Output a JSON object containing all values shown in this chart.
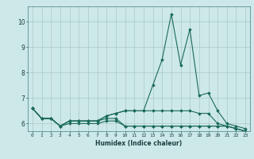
{
  "xlabel": "Humidex (Indice chaleur)",
  "x_values": [
    0,
    1,
    2,
    3,
    4,
    5,
    6,
    7,
    8,
    9,
    10,
    11,
    12,
    13,
    14,
    15,
    16,
    17,
    18,
    19,
    20,
    21,
    22,
    23
  ],
  "series": [
    [
      6.6,
      6.2,
      6.2,
      5.9,
      6.1,
      6.1,
      6.1,
      6.1,
      6.3,
      6.4,
      6.5,
      6.5,
      6.5,
      7.5,
      8.5,
      10.3,
      8.3,
      9.7,
      7.1,
      7.2,
      6.5,
      6.0,
      5.9,
      5.8
    ],
    [
      6.6,
      6.2,
      6.2,
      5.9,
      6.1,
      6.1,
      6.1,
      6.1,
      6.3,
      6.4,
      6.5,
      6.5,
      6.5,
      6.5,
      6.5,
      6.5,
      6.5,
      6.5,
      6.4,
      6.4,
      6.0,
      5.9,
      5.8,
      5.7
    ],
    [
      6.6,
      6.2,
      6.2,
      5.9,
      6.1,
      6.1,
      6.1,
      6.1,
      6.2,
      6.2,
      5.9,
      5.9,
      5.9,
      5.9,
      5.9,
      5.9,
      5.9,
      5.9,
      5.9,
      5.9,
      5.9,
      5.9,
      5.8,
      5.7
    ],
    [
      6.6,
      6.2,
      6.2,
      5.9,
      6.0,
      6.0,
      6.0,
      6.0,
      6.1,
      6.1,
      5.9,
      5.9,
      5.9,
      5.9,
      5.9,
      5.9,
      5.9,
      5.9,
      5.9,
      5.9,
      5.9,
      5.9,
      5.8,
      5.7
    ]
  ],
  "line_color": "#1a6b5a",
  "bg_color": "#cde8e8",
  "grid_color": "#aac8c8",
  "ylim": [
    5.7,
    10.6
  ],
  "yticks": [
    6,
    7,
    8,
    9,
    10
  ],
  "marker": "D",
  "markersize": 1.8,
  "linewidth": 0.8
}
